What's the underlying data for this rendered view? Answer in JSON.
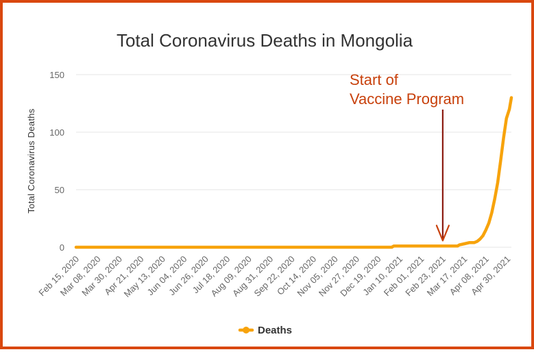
{
  "chart_data": {
    "type": "line",
    "title": "Total Coronavirus Deaths in Mongolia",
    "xlabel": "",
    "ylabel": "Total Coronavirus Deaths",
    "ylim": [
      0,
      150
    ],
    "yticks": [
      "0",
      "50",
      "100",
      "150"
    ],
    "xticks": [
      "Feb 15, 2020",
      "Mar 08, 2020",
      "Mar 30, 2020",
      "Apr 21, 2020",
      "May 13, 2020",
      "Jun 04, 2020",
      "Jun 26, 2020",
      "Jul 18, 2020",
      "Aug 09, 2020",
      "Aug 31, 2020",
      "Sep 22, 2020",
      "Oct 14, 2020",
      "Nov 05, 2020",
      "Nov 27, 2020",
      "Dec 19, 2020",
      "Jan 10, 2021",
      "Feb 01, 2021",
      "Feb 23, 2021",
      "Mar 17, 2021",
      "Apr 08, 2021",
      "Apr 30, 2021"
    ],
    "grid": true,
    "legend_position": "bottom",
    "series": [
      {
        "name": "Deaths",
        "color": "#f7a30c",
        "x": [
          "2020-02-15",
          "2021-01-02",
          "2021-01-04",
          "2021-02-23",
          "2021-03-10",
          "2021-03-12",
          "2021-03-17",
          "2021-03-22",
          "2021-03-27",
          "2021-03-30",
          "2021-04-02",
          "2021-04-05",
          "2021-04-08",
          "2021-04-11",
          "2021-04-14",
          "2021-04-17",
          "2021-04-20",
          "2021-04-23",
          "2021-04-26",
          "2021-04-29",
          "2021-05-02",
          "2021-05-04"
        ],
        "values": [
          0,
          0,
          1,
          1,
          1,
          2,
          3,
          4,
          4,
          5,
          7,
          10,
          15,
          21,
          30,
          42,
          56,
          75,
          95,
          112,
          120,
          130
        ]
      }
    ],
    "annotations": [
      {
        "text_lines": [
          "Start of",
          "Vaccine Program"
        ],
        "x": "2021-02-23",
        "y": 1,
        "color": "#c8410c"
      }
    ]
  }
}
